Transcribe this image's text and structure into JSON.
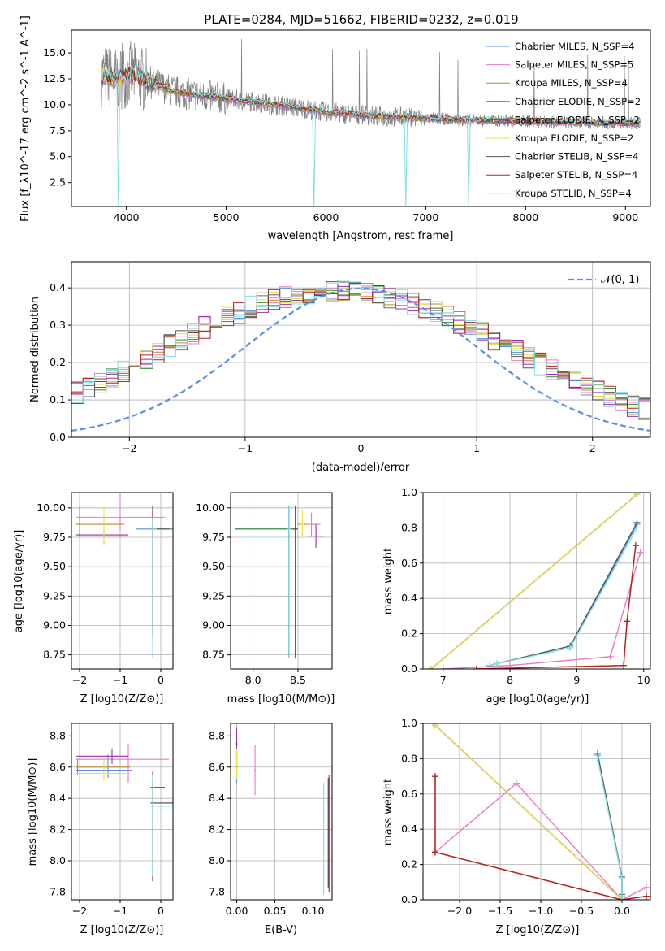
{
  "colors": {
    "series": [
      "#5b8ee6",
      "#e878c8",
      "#c0862a",
      "#3a8a3a",
      "#9b2fae",
      "#e6e04a",
      "#555555",
      "#b22222",
      "#7fe0e6"
    ],
    "normal": "#5b8ee6",
    "grid": "#b0b0b0"
  },
  "chart_data": [
    {
      "id": "spectrum",
      "type": "line",
      "title": "PLATE=0284, MJD=51662, FIBERID=0232, z=0.019",
      "xlabel": "wavelength [Angstrom, rest frame]",
      "ylabel": "Flux [f_λ10^-17 erg cm^-2 s^-1 A^-1]",
      "xlim": [
        3450,
        9250
      ],
      "ylim": [
        0.2,
        17.2
      ],
      "xticks": [
        4000,
        5000,
        6000,
        7000,
        8000,
        9000
      ],
      "yticks": [
        2.5,
        5.0,
        7.5,
        10.0,
        12.5,
        15.0
      ],
      "grid": false,
      "legend_position": "top-right",
      "series": [
        {
          "name": "Chabrier MILES, N_SSP=4"
        },
        {
          "name": "Salpeter MILES, N_SSP=5"
        },
        {
          "name": "Kroupa MILES, N_SSP=4"
        },
        {
          "name": "Chabrier ELODIE, N_SSP=2"
        },
        {
          "name": "Salpeter ELODIE, N_SSP=2"
        },
        {
          "name": "Kroupa ELODIE, N_SSP=2"
        },
        {
          "name": "Chabrier STELIB, N_SSP=4"
        },
        {
          "name": "Salpeter STELIB, N_SSP=4"
        },
        {
          "name": "Kroupa STELIB, N_SSP=4"
        }
      ],
      "continuum": {
        "x": [
          3750,
          3900,
          4050,
          4200,
          4500,
          5000,
          5500,
          6000,
          6500,
          7000,
          7500,
          8000,
          8500,
          9000
        ],
        "y": [
          12.8,
          12.5,
          13.0,
          12.3,
          11.2,
          10.6,
          10.0,
          9.3,
          8.9,
          8.7,
          8.5,
          8.4,
          8.3,
          8.2
        ]
      },
      "drops": [
        {
          "x": 3920,
          "y": 0.2
        },
        {
          "x": 5880,
          "y": 0.2
        },
        {
          "x": 6800,
          "y": 0.2
        },
        {
          "x": 7430,
          "y": 0.2
        }
      ]
    },
    {
      "id": "residuals",
      "type": "histogram",
      "xlabel": "(data-model)/error",
      "ylabel": "Normed distribution",
      "xlim": [
        -2.5,
        2.5
      ],
      "ylim": [
        0,
        0.47
      ],
      "xticks": [
        -2,
        -1,
        0,
        1,
        2
      ],
      "yticks": [
        0.0,
        0.1,
        0.2,
        0.3,
        0.4
      ],
      "grid": true,
      "legend_position": "top-right",
      "normal_label": "𝒩(0, 1)",
      "bin_width": 0.1,
      "base_density": [
        0.045,
        0.048,
        0.05,
        0.055,
        0.06,
        0.068,
        0.076,
        0.085,
        0.096,
        0.108,
        0.12,
        0.133,
        0.148,
        0.163,
        0.178,
        0.195,
        0.212,
        0.228,
        0.245,
        0.262,
        0.278,
        0.294,
        0.308,
        0.322,
        0.335,
        0.348,
        0.358,
        0.367,
        0.375,
        0.381,
        0.386,
        0.39,
        0.392,
        0.392,
        0.39,
        0.387,
        0.382,
        0.375,
        0.367,
        0.358,
        0.347,
        0.335,
        0.322,
        0.308,
        0.294,
        0.279,
        0.263,
        0.247,
        0.23,
        0.213,
        0.197,
        0.181,
        0.165,
        0.15,
        0.135,
        0.121,
        0.108,
        0.096,
        0.085,
        0.075,
        0.066,
        0.058,
        0.051,
        0.045,
        0.04,
        0.035,
        0.031,
        0.027,
        0.024,
        0.021
      ]
    },
    {
      "id": "age-vs-Z",
      "type": "errorbar",
      "xlabel": "Z [log10(Z/Z⊙)]",
      "ylabel": "age  [log10(age/yr)]",
      "xlim": [
        -2.2,
        0.3
      ],
      "ylim": [
        8.63,
        10.13
      ],
      "xticks": [
        -2,
        -1,
        0
      ],
      "yticks": [
        8.75,
        9.0,
        9.25,
        9.5,
        9.75,
        10.0
      ],
      "grid": true,
      "points": [
        {
          "s": 0,
          "x": -0.2,
          "y": 9.82,
          "xerr": [
            0.4,
            0.0
          ],
          "yerr": [
            0.9,
            0.2
          ]
        },
        {
          "s": 1,
          "x": -1.0,
          "y": 9.92,
          "xerr": [
            1.1,
            1.1
          ],
          "yerr": [
            0.12,
            0.2
          ]
        },
        {
          "s": 2,
          "x": -2.0,
          "y": 9.86,
          "xerr": [
            0.1,
            1.1
          ],
          "yerr": [
            0.1,
            0.15
          ]
        },
        {
          "s": 3,
          "x": -0.2,
          "y": 9.82,
          "xerr": [
            0.05,
            0.5
          ],
          "yerr": [
            0.95,
            0.2
          ]
        },
        {
          "s": 4,
          "x": -1.4,
          "y": 9.77,
          "xerr": [
            0.7,
            0.6
          ],
          "yerr": [
            0.08,
            0.1
          ]
        },
        {
          "s": 5,
          "x": -1.4,
          "y": 9.76,
          "xerr": [
            0.7,
            0.6
          ],
          "yerr": [
            0.08,
            0.24
          ]
        },
        {
          "s": 6,
          "x": -0.2,
          "y": 9.82,
          "xerr": [
            0.05,
            0.4
          ],
          "yerr": [
            0.9,
            0.2
          ]
        },
        {
          "s": 7,
          "x": -0.2,
          "y": 9.82,
          "xerr": [
            0.05,
            0.1
          ],
          "yerr": [
            0.9,
            0.15
          ]
        },
        {
          "s": 8,
          "x": -0.2,
          "y": 9.82,
          "xerr": [
            0.05,
            0.1
          ],
          "yerr": [
            1.1,
            0.1
          ]
        }
      ]
    },
    {
      "id": "age-vs-mass",
      "type": "errorbar",
      "xlabel": "mass [log10(M/M⊙)]",
      "ylabel": "",
      "xlim": [
        7.75,
        8.88
      ],
      "ylim": [
        8.63,
        10.13
      ],
      "xticks": [
        8.0,
        8.5
      ],
      "yticks": [
        8.75,
        9.0,
        9.25,
        9.5,
        9.75,
        10.0
      ],
      "grid": true,
      "points": [
        {
          "s": 0,
          "x": 8.4,
          "y": 9.82,
          "xerr": [
            0.6,
            0.1
          ],
          "yerr": [
            1.1,
            0.2
          ]
        },
        {
          "s": 1,
          "x": 8.65,
          "y": 9.86,
          "xerr": [
            0.05,
            0.1
          ],
          "yerr": [
            0.1,
            0.1
          ]
        },
        {
          "s": 2,
          "x": 8.55,
          "y": 9.86,
          "xerr": [
            0.05,
            0.05
          ],
          "yerr": [
            0.1,
            0.1
          ]
        },
        {
          "s": 3,
          "x": 8.4,
          "y": 9.82,
          "xerr": [
            0.6,
            0.1
          ],
          "yerr": [
            1.1,
            0.2
          ]
        },
        {
          "s": 4,
          "x": 8.7,
          "y": 9.76,
          "xerr": [
            0.1,
            0.1
          ],
          "yerr": [
            0.1,
            0.1
          ]
        },
        {
          "s": 5,
          "x": 8.55,
          "y": 9.86,
          "xerr": [
            0.02,
            0.02
          ],
          "yerr": [
            0.1,
            0.12
          ]
        },
        {
          "s": 6,
          "x": 8.4,
          "y": 9.82,
          "xerr": [
            0.02,
            0.02
          ],
          "yerr": [
            1.1,
            0.2
          ]
        },
        {
          "s": 7,
          "x": 8.47,
          "y": 9.82,
          "xerr": [
            0.02,
            0.02
          ],
          "yerr": [
            1.1,
            0.2
          ]
        },
        {
          "s": 8,
          "x": 8.4,
          "y": 9.82,
          "xerr": [
            0.02,
            0.02
          ],
          "yerr": [
            1.1,
            0.2
          ]
        }
      ]
    },
    {
      "id": "weight-vs-age",
      "type": "line",
      "xlabel": "age  [log10(age/yr)]",
      "ylabel": "mass weight",
      "xlim": [
        6.7,
        10.1
      ],
      "ylim": [
        0,
        1
      ],
      "xticks": [
        7,
        8,
        9,
        10
      ],
      "yticks": [
        0.0,
        0.2,
        0.4,
        0.6,
        0.8,
        1.0
      ],
      "grid": true,
      "series": [
        {
          "s": 0,
          "x": [
            7.7,
            7.8,
            8.9,
            9.9
          ],
          "y": [
            0.02,
            0.03,
            0.12,
            0.82
          ]
        },
        {
          "s": 1,
          "x": [
            7.0,
            8.0,
            9.5,
            9.95
          ],
          "y": [
            0.0,
            0.02,
            0.07,
            0.66
          ]
        },
        {
          "s": 2,
          "x": [
            7.5,
            9.7,
            9.75,
            9.88
          ],
          "y": [
            0.0,
            0.02,
            0.27,
            0.7
          ]
        },
        {
          "s": 3,
          "x": [
            6.82,
            9.9
          ],
          "y": [
            0.0,
            0.99
          ]
        },
        {
          "s": 4,
          "x": [
            6.82,
            9.9
          ],
          "y": [
            0.0,
            0.99
          ]
        },
        {
          "s": 5,
          "x": [
            6.82,
            9.9
          ],
          "y": [
            0.0,
            0.99
          ]
        },
        {
          "s": 6,
          "x": [
            7.7,
            7.8,
            8.9,
            9.9
          ],
          "y": [
            0.02,
            0.03,
            0.13,
            0.83
          ]
        },
        {
          "s": 7,
          "x": [
            7.5,
            9.7,
            9.75,
            9.88
          ],
          "y": [
            0.0,
            0.02,
            0.27,
            0.7
          ]
        },
        {
          "s": 8,
          "x": [
            7.7,
            7.8,
            8.9,
            9.9
          ],
          "y": [
            0.02,
            0.03,
            0.12,
            0.8
          ]
        }
      ]
    },
    {
      "id": "mass-vs-Z",
      "type": "errorbar",
      "xlabel": "Z [log10(Z/Z⊙)]",
      "ylabel": "mass [log10(M/M⊙)]",
      "xlim": [
        -2.2,
        0.3
      ],
      "ylim": [
        7.75,
        8.88
      ],
      "xticks": [
        -2,
        -1,
        0
      ],
      "yticks": [
        7.8,
        8.0,
        8.2,
        8.4,
        8.6,
        8.8
      ],
      "grid": true,
      "points": [
        {
          "s": 0,
          "x": -1.3,
          "y": 8.58,
          "xerr": [
            0.8,
            0.6
          ],
          "yerr": [
            0.05,
            0.1
          ]
        },
        {
          "s": 1,
          "x": -0.8,
          "y": 8.65,
          "xerr": [
            1.3,
            1.0
          ],
          "yerr": [
            0.15,
            0.1
          ]
        },
        {
          "s": 2,
          "x": -2.05,
          "y": 8.6,
          "xerr": [
            0.05,
            1.3
          ],
          "yerr": [
            0.05,
            0.05
          ]
        },
        {
          "s": 3,
          "x": -0.2,
          "y": 8.37,
          "xerr": [
            0.05,
            0.5
          ],
          "yerr": [
            0.5,
            0.15
          ]
        },
        {
          "s": 4,
          "x": -1.2,
          "y": 8.67,
          "xerr": [
            0.9,
            0.4
          ],
          "yerr": [
            0.05,
            0.05
          ]
        },
        {
          "s": 5,
          "x": -1.4,
          "y": 8.56,
          "xerr": [
            0.7,
            0.6
          ],
          "yerr": [
            0.05,
            0.1
          ]
        },
        {
          "s": 6,
          "x": -0.2,
          "y": 8.37,
          "xerr": [
            0.05,
            0.5
          ],
          "yerr": [
            0.5,
            0.15
          ]
        },
        {
          "s": 7,
          "x": -0.2,
          "y": 8.47,
          "xerr": [
            0.05,
            0.3
          ],
          "yerr": [
            0.6,
            0.1
          ]
        },
        {
          "s": 8,
          "x": -0.2,
          "y": 8.35,
          "xerr": [
            0.05,
            0.5
          ],
          "yerr": [
            0.45,
            0.2
          ]
        }
      ]
    },
    {
      "id": "mass-vs-ebv",
      "type": "errorbar",
      "xlabel": "E(B-V)",
      "ylabel": "",
      "xlim": [
        -0.008,
        0.125
      ],
      "ylim": [
        7.75,
        8.88
      ],
      "xticks": [
        0.0,
        0.05,
        0.1
      ],
      "yticks": [
        7.8,
        8.0,
        8.2,
        8.4,
        8.6,
        8.8
      ],
      "grid": true,
      "points": [
        {
          "s": 0,
          "x": 0.0,
          "y": 8.6,
          "xerr": [
            0.001,
            0.001
          ],
          "yerr": [
            0.1,
            0.1
          ]
        },
        {
          "s": 1,
          "x": 0.024,
          "y": 8.58,
          "xerr": [
            0.001,
            0.001
          ],
          "yerr": [
            0.16,
            0.16
          ]
        },
        {
          "s": 2,
          "x": 0.0,
          "y": 8.6,
          "xerr": [
            0.001,
            0.001
          ],
          "yerr": [
            0.05,
            0.05
          ]
        },
        {
          "s": 3,
          "x": 0.12,
          "y": 8.38,
          "xerr": [
            0.001,
            0.001
          ],
          "yerr": [
            0.55,
            0.15
          ]
        },
        {
          "s": 4,
          "x": 0.0,
          "y": 8.75,
          "xerr": [
            0.001,
            0.001
          ],
          "yerr": [
            0.1,
            0.1
          ]
        },
        {
          "s": 5,
          "x": 0.0,
          "y": 8.62,
          "xerr": [
            0.001,
            0.001
          ],
          "yerr": [
            0.1,
            0.1
          ]
        },
        {
          "s": 6,
          "x": 0.12,
          "y": 8.38,
          "xerr": [
            0.001,
            0.001
          ],
          "yerr": [
            0.55,
            0.15
          ]
        },
        {
          "s": 7,
          "x": 0.121,
          "y": 8.35,
          "xerr": [
            0.001,
            0.001
          ],
          "yerr": [
            0.55,
            0.2
          ]
        },
        {
          "s": 8,
          "x": 0.114,
          "y": 8.2,
          "xerr": [
            0.001,
            0.001
          ],
          "yerr": [
            0.42,
            0.3
          ]
        }
      ]
    },
    {
      "id": "weight-vs-Z",
      "type": "line",
      "xlabel": "Z [log10(Z/Z⊙)]",
      "ylabel": "mass weight",
      "xlim": [
        -2.45,
        0.35
      ],
      "ylim": [
        0,
        1
      ],
      "xticks": [
        -2.0,
        -1.5,
        -1.0,
        -0.5,
        0.0
      ],
      "yticks": [
        0.0,
        0.2,
        0.4,
        0.6,
        0.8,
        1.0
      ],
      "grid": true,
      "series": [
        {
          "s": 0,
          "x": [
            -0.3,
            0.0,
            0.0
          ],
          "y": [
            0.82,
            0.12,
            0.02
          ]
        },
        {
          "s": 1,
          "x": [
            -2.3,
            -1.3,
            0.0,
            0.3
          ],
          "y": [
            0.27,
            0.66,
            0.0,
            0.07
          ]
        },
        {
          "s": 2,
          "x": [
            -2.3,
            -2.3,
            0.0,
            0.3
          ],
          "y": [
            0.7,
            0.27,
            0.0,
            0.02
          ]
        },
        {
          "s": 3,
          "x": [
            -2.3,
            0.0
          ],
          "y": [
            0.99,
            0.0
          ]
        },
        {
          "s": 4,
          "x": [
            -2.3,
            0.0
          ],
          "y": [
            0.99,
            0.0
          ]
        },
        {
          "s": 5,
          "x": [
            -2.3,
            0.0
          ],
          "y": [
            0.99,
            0.0
          ]
        },
        {
          "s": 6,
          "x": [
            -0.3,
            0.0,
            0.0
          ],
          "y": [
            0.83,
            0.13,
            0.03
          ]
        },
        {
          "s": 7,
          "x": [
            -2.3,
            -2.3,
            0.0,
            0.3
          ],
          "y": [
            0.7,
            0.27,
            0.0,
            0.02
          ]
        },
        {
          "s": 8,
          "x": [
            -0.3,
            0.0,
            0.0
          ],
          "y": [
            0.8,
            0.12,
            0.02
          ]
        }
      ]
    }
  ]
}
